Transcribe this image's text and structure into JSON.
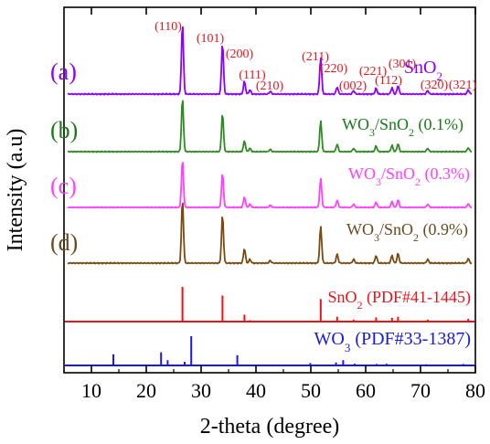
{
  "chart_data": {
    "type": "line",
    "xlabel": "2-theta (degree)",
    "ylabel": "Intensity (a.u)",
    "xlim": [
      5,
      80
    ],
    "xticks": [
      10,
      20,
      30,
      40,
      50,
      60,
      70,
      80
    ],
    "xtick_labels": [
      "10",
      "20",
      "30",
      "40",
      "50",
      "60",
      "70",
      "80"
    ],
    "grid": false,
    "series": [
      {
        "tag": "(a)",
        "name_base": "SnO",
        "name_sub": "2",
        "name_suffix": "",
        "color": "#8B00FF",
        "label_color": "#8B00FF",
        "peaks": [
          [
            26.6,
            100
          ],
          [
            33.9,
            72
          ],
          [
            37.9,
            18
          ],
          [
            38.9,
            6
          ],
          [
            42.6,
            4
          ],
          [
            51.8,
            52
          ],
          [
            54.8,
            10
          ],
          [
            57.8,
            5
          ],
          [
            61.9,
            8
          ],
          [
            64.8,
            9
          ],
          [
            65.9,
            12
          ],
          [
            71.3,
            5
          ],
          [
            78.7,
            6
          ]
        ]
      },
      {
        "tag": "(b)",
        "name_base": "WO",
        "name_sub": "3",
        "name_suffix": "/SnO",
        "name_sub2": "2",
        "name_tail": " (0.1%)",
        "color": "#2E8B22",
        "label_color": "#1A7A1A",
        "peaks": [
          [
            26.6,
            95
          ],
          [
            33.9,
            68
          ],
          [
            37.9,
            19
          ],
          [
            38.9,
            6
          ],
          [
            42.6,
            4
          ],
          [
            51.8,
            55
          ],
          [
            54.8,
            13
          ],
          [
            57.8,
            6
          ],
          [
            61.9,
            10
          ],
          [
            64.8,
            11
          ],
          [
            65.9,
            14
          ],
          [
            71.3,
            6
          ],
          [
            78.7,
            7
          ]
        ]
      },
      {
        "tag": "(c)",
        "name_base": "WO",
        "name_sub": "3",
        "name_suffix": "/SnO",
        "name_sub2": "2",
        "name_tail": " (0.3%)",
        "color": "#FF40FF",
        "label_color": "#FF40FF",
        "peaks": [
          [
            26.6,
            90
          ],
          [
            33.9,
            65
          ],
          [
            37.9,
            20
          ],
          [
            38.9,
            6
          ],
          [
            42.6,
            4
          ],
          [
            51.8,
            55
          ],
          [
            54.8,
            13
          ],
          [
            57.8,
            6
          ],
          [
            61.9,
            10
          ],
          [
            64.8,
            11
          ],
          [
            65.9,
            14
          ],
          [
            71.3,
            6
          ],
          [
            78.7,
            7
          ]
        ]
      },
      {
        "tag": "(d)",
        "name_base": "WO",
        "name_sub": "3",
        "name_suffix": "/SnO",
        "name_sub2": "2",
        "name_tail": " (0.9%)",
        "color": "#7A4A10",
        "label_color": "#6B4A1E",
        "peaks": [
          [
            26.6,
            100
          ],
          [
            33.9,
            76
          ],
          [
            37.9,
            23
          ],
          [
            38.9,
            6
          ],
          [
            42.6,
            4
          ],
          [
            51.8,
            58
          ],
          [
            54.8,
            14
          ],
          [
            57.8,
            6
          ],
          [
            61.9,
            12
          ],
          [
            64.8,
            12
          ],
          [
            65.9,
            15
          ],
          [
            71.3,
            6
          ],
          [
            78.7,
            7
          ]
        ]
      }
    ],
    "references": [
      {
        "name_base": "SnO",
        "name_sub": "2",
        "name_tail": " (PDF#41-1445)",
        "color": "#E8141C",
        "sticks": [
          [
            26.6,
            100
          ],
          [
            33.9,
            75
          ],
          [
            37.9,
            20
          ],
          [
            38.9,
            4
          ],
          [
            42.6,
            2
          ],
          [
            51.8,
            65
          ],
          [
            54.8,
            14
          ],
          [
            57.8,
            6
          ],
          [
            61.9,
            12
          ],
          [
            64.8,
            11
          ],
          [
            65.9,
            14
          ],
          [
            71.3,
            6
          ],
          [
            78.7,
            8
          ]
        ]
      },
      {
        "name_base": "WO",
        "name_sub": "3",
        "name_tail": " (PDF#33-1387)",
        "color": "#1A1AE6",
        "sticks": [
          [
            14.0,
            38
          ],
          [
            22.7,
            45
          ],
          [
            23.9,
            18
          ],
          [
            27.0,
            12
          ],
          [
            28.2,
            100
          ],
          [
            36.6,
            35
          ],
          [
            49.9,
            8
          ],
          [
            54.6,
            10
          ],
          [
            55.9,
            18
          ],
          [
            58.0,
            6
          ],
          [
            62.0,
            5
          ],
          [
            63.8,
            6
          ],
          [
            71.0,
            4
          ],
          [
            77.8,
            5
          ]
        ]
      }
    ],
    "annotations": [
      {
        "text": "(110)",
        "x": 26.6
      },
      {
        "text": "(101)",
        "x": 33.9
      },
      {
        "text": "(200)",
        "x": 37.9
      },
      {
        "text": "(111)",
        "x": 38.9
      },
      {
        "text": "(210)",
        "x": 42.6
      },
      {
        "text": "(211)",
        "x": 51.8
      },
      {
        "text": "(220)",
        "x": 54.8
      },
      {
        "text": "(002)",
        "x": 57.8
      },
      {
        "text": "(221)",
        "x": 61.9
      },
      {
        "text": "(112)",
        "x": 64.8
      },
      {
        "text": "(301)",
        "x": 65.9
      },
      {
        "text": "(320)",
        "x": 71.3
      },
      {
        "text": "(321)",
        "x": 78.7
      }
    ],
    "annotation_color": "#E8141C"
  }
}
